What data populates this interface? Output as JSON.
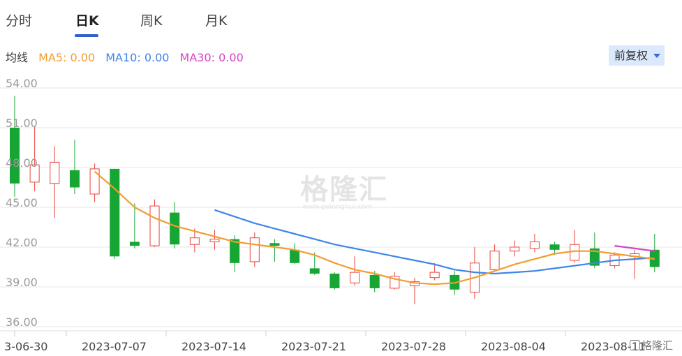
{
  "tabs": [
    {
      "label": "分时",
      "active": false
    },
    {
      "label": "日K",
      "active": true
    },
    {
      "label": "周K",
      "active": false
    },
    {
      "label": "月K",
      "active": false
    }
  ],
  "ma": {
    "title": "均线",
    "ma5": "MA5: 0.00",
    "ma10": "MA10: 0.00",
    "ma30": "MA30: 0.00"
  },
  "adjust": {
    "label": "前复权"
  },
  "watermark": {
    "text": "格隆汇",
    "sub": "www.gelonghui.com"
  },
  "logo": {
    "text": "格隆汇"
  },
  "colors": {
    "up": "#e8453c",
    "down": "#17a534",
    "ma5": "#f39c2f",
    "ma10": "#3e86e8",
    "ma30": "#d444c8",
    "active_tab": "#2f5fd0",
    "grid": "#e6e6e6"
  },
  "chart_data": {
    "type": "candlestick",
    "y_ticks": [
      "54.00",
      "51.00",
      "48.00",
      "45.00",
      "42.00",
      "39.00",
      "36.00"
    ],
    "ylim": [
      36,
      54
    ],
    "x_tick_labels": [
      "3-06-30",
      "2023-07-07",
      "2023-07-14",
      "2023-07-21",
      "2023-07-28",
      "2023-08-04",
      "2023-08-11"
    ],
    "candles": [
      {
        "o": 51.0,
        "c": 46.8,
        "h": 53.4,
        "l": 45.8
      },
      {
        "o": 46.9,
        "c": 48.2,
        "h": 51.1,
        "l": 46.2
      },
      {
        "o": 46.8,
        "c": 48.4,
        "h": 49.6,
        "l": 44.2
      },
      {
        "o": 47.8,
        "c": 46.5,
        "h": 50.1,
        "l": 46.0
      },
      {
        "o": 46.0,
        "c": 47.9,
        "h": 48.3,
        "l": 45.4
      },
      {
        "o": 47.9,
        "c": 41.3,
        "h": 47.9,
        "l": 41.1
      },
      {
        "o": 42.4,
        "c": 42.1,
        "h": 45.3,
        "l": 41.9
      },
      {
        "o": 42.1,
        "c": 45.1,
        "h": 45.6,
        "l": 42.0
      },
      {
        "o": 44.6,
        "c": 42.2,
        "h": 45.4,
        "l": 41.9
      },
      {
        "o": 42.2,
        "c": 42.7,
        "h": 43.4,
        "l": 41.6
      },
      {
        "o": 42.4,
        "c": 42.6,
        "h": 43.3,
        "l": 41.8
      },
      {
        "o": 42.6,
        "c": 40.8,
        "h": 42.9,
        "l": 40.1
      },
      {
        "o": 40.9,
        "c": 42.7,
        "h": 43.1,
        "l": 40.5
      },
      {
        "o": 42.3,
        "c": 42.1,
        "h": 42.6,
        "l": 40.9
      },
      {
        "o": 41.8,
        "c": 40.8,
        "h": 42.3,
        "l": 40.7
      },
      {
        "o": 40.4,
        "c": 40.0,
        "h": 41.6,
        "l": 39.9
      },
      {
        "o": 40.0,
        "c": 38.9,
        "h": 40.1,
        "l": 38.8
      },
      {
        "o": 39.3,
        "c": 40.1,
        "h": 41.3,
        "l": 39.1
      },
      {
        "o": 39.9,
        "c": 38.9,
        "h": 40.2,
        "l": 38.6
      },
      {
        "o": 38.9,
        "c": 39.8,
        "h": 40.1,
        "l": 38.8
      },
      {
        "o": 39.1,
        "c": 39.4,
        "h": 39.7,
        "l": 37.7
      },
      {
        "o": 39.7,
        "c": 40.1,
        "h": 40.8,
        "l": 39.5
      },
      {
        "o": 39.9,
        "c": 38.8,
        "h": 40.2,
        "l": 38.4
      },
      {
        "o": 38.6,
        "c": 40.8,
        "h": 42.0,
        "l": 38.1
      },
      {
        "o": 40.3,
        "c": 41.7,
        "h": 42.2,
        "l": 40.2
      },
      {
        "o": 41.7,
        "c": 42.0,
        "h": 42.5,
        "l": 41.3
      },
      {
        "o": 41.9,
        "c": 42.4,
        "h": 43.0,
        "l": 41.6
      },
      {
        "o": 42.2,
        "c": 41.8,
        "h": 42.4,
        "l": 41.4
      },
      {
        "o": 41.0,
        "c": 42.2,
        "h": 43.3,
        "l": 40.8
      },
      {
        "o": 41.9,
        "c": 40.6,
        "h": 43.1,
        "l": 40.4
      },
      {
        "o": 40.6,
        "c": 41.4,
        "h": 41.6,
        "l": 40.4
      },
      {
        "o": 41.3,
        "c": 41.5,
        "h": 41.8,
        "l": 39.6
      },
      {
        "o": 41.8,
        "c": 40.5,
        "h": 43.0,
        "l": 40.1
      }
    ],
    "ma5": [
      null,
      null,
      null,
      null,
      47.7,
      46.4,
      45.0,
      44.2,
      43.6,
      43.2,
      42.8,
      42.4,
      42.2,
      42.0,
      41.8,
      41.4,
      40.8,
      40.3,
      40.0,
      39.6,
      39.3,
      39.2,
      39.3,
      39.7,
      40.2,
      40.7,
      41.1,
      41.5,
      41.7,
      41.7,
      41.5,
      41.3,
      41.1
    ],
    "ma10": [
      null,
      null,
      null,
      null,
      null,
      null,
      null,
      null,
      null,
      null,
      44.8,
      44.3,
      43.8,
      43.4,
      43.0,
      42.6,
      42.2,
      41.9,
      41.6,
      41.3,
      41.0,
      40.7,
      40.3,
      40.1,
      40.0,
      40.1,
      40.2,
      40.4,
      40.6,
      40.8,
      41.0,
      41.1,
      41.2
    ],
    "ma30": [
      null,
      null,
      null,
      null,
      null,
      null,
      null,
      null,
      null,
      null,
      null,
      null,
      null,
      null,
      null,
      null,
      null,
      null,
      null,
      null,
      null,
      null,
      null,
      null,
      null,
      null,
      null,
      null,
      null,
      null,
      42.1,
      41.9,
      41.7
    ]
  }
}
